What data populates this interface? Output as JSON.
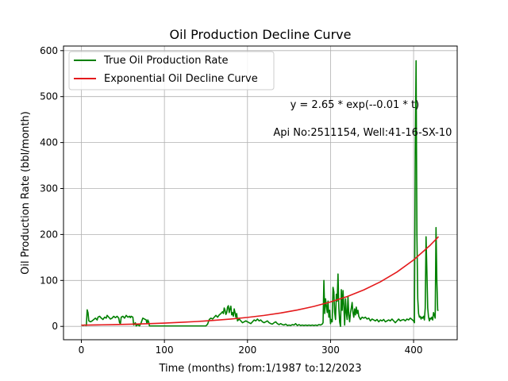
{
  "chart_data": {
    "type": "line",
    "title": "Oil Production Decline Curve",
    "xlabel": "Time (months) from:1/1987 to:12/2023",
    "ylabel": "Oil Production Rate (bbl/month)",
    "xlim": [
      -21.5,
      452.5
    ],
    "ylim": [
      -29,
      610
    ],
    "xticks": [
      0,
      100,
      200,
      300,
      400
    ],
    "yticks": [
      0,
      100,
      200,
      300,
      400,
      500,
      600
    ],
    "grid": true,
    "legend_position": "top-left",
    "annotations": [
      {
        "text": "y = 2.65 * exp(--0.01 * t)",
        "x": 310,
        "y": 475
      },
      {
        "text": "Api No:2511154, Well:41-16-SX-10",
        "x": 310,
        "y": 415
      }
    ],
    "series": [
      {
        "name": "True Oil Production Rate",
        "color": "#008000",
        "points": [
          [
            0,
            3
          ],
          [
            2,
            2
          ],
          [
            4,
            3
          ],
          [
            6,
            2
          ],
          [
            7,
            36
          ],
          [
            8,
            30
          ],
          [
            9,
            12
          ],
          [
            11,
            10
          ],
          [
            13,
            12
          ],
          [
            15,
            15
          ],
          [
            17,
            18
          ],
          [
            19,
            14
          ],
          [
            20,
            20
          ],
          [
            22,
            22
          ],
          [
            24,
            18
          ],
          [
            26,
            15
          ],
          [
            28,
            20
          ],
          [
            30,
            18
          ],
          [
            31,
            24
          ],
          [
            33,
            20
          ],
          [
            35,
            16
          ],
          [
            37,
            18
          ],
          [
            39,
            22
          ],
          [
            41,
            19
          ],
          [
            43,
            22
          ],
          [
            45,
            18
          ],
          [
            46,
            8
          ],
          [
            47,
            6
          ],
          [
            48,
            20
          ],
          [
            50,
            22
          ],
          [
            52,
            18
          ],
          [
            54,
            24
          ],
          [
            56,
            20
          ],
          [
            58,
            22
          ],
          [
            59,
            19
          ],
          [
            60,
            22
          ],
          [
            62,
            20
          ],
          [
            63,
            3
          ],
          [
            65,
            8
          ],
          [
            66,
            1
          ],
          [
            68,
            4
          ],
          [
            70,
            1
          ],
          [
            72,
            8
          ],
          [
            74,
            18
          ],
          [
            76,
            16
          ],
          [
            78,
            14
          ],
          [
            79,
            6
          ],
          [
            80,
            14
          ],
          [
            81,
            10
          ],
          [
            82,
            1
          ],
          [
            85,
            1
          ],
          [
            95,
            1
          ],
          [
            110,
            1
          ],
          [
            125,
            1
          ],
          [
            140,
            1
          ],
          [
            150,
            1
          ],
          [
            152,
            5
          ],
          [
            154,
            15
          ],
          [
            156,
            18
          ],
          [
            158,
            16
          ],
          [
            160,
            20
          ],
          [
            162,
            24
          ],
          [
            164,
            20
          ],
          [
            166,
            25
          ],
          [
            168,
            28
          ],
          [
            170,
            32
          ],
          [
            171,
            28
          ],
          [
            172,
            40
          ],
          [
            173,
            35
          ],
          [
            174,
            26
          ],
          [
            175,
            30
          ],
          [
            176,
            42
          ],
          [
            177,
            45
          ],
          [
            178,
            30
          ],
          [
            179,
            38
          ],
          [
            180,
            44
          ],
          [
            181,
            25
          ],
          [
            182,
            30
          ],
          [
            183,
            22
          ],
          [
            184,
            38
          ],
          [
            185,
            30
          ],
          [
            186,
            20
          ],
          [
            187,
            28
          ],
          [
            188,
            12
          ],
          [
            190,
            16
          ],
          [
            192,
            12
          ],
          [
            194,
            8
          ],
          [
            196,
            10
          ],
          [
            198,
            12
          ],
          [
            200,
            10
          ],
          [
            202,
            8
          ],
          [
            204,
            6
          ],
          [
            206,
            10
          ],
          [
            208,
            14
          ],
          [
            210,
            12
          ],
          [
            212,
            16
          ],
          [
            214,
            12
          ],
          [
            216,
            14
          ],
          [
            218,
            10
          ],
          [
            220,
            8
          ],
          [
            222,
            10
          ],
          [
            224,
            12
          ],
          [
            226,
            8
          ],
          [
            228,
            6
          ],
          [
            230,
            5
          ],
          [
            232,
            8
          ],
          [
            234,
            10
          ],
          [
            236,
            6
          ],
          [
            238,
            4
          ],
          [
            240,
            6
          ],
          [
            242,
            4
          ],
          [
            244,
            3
          ],
          [
            246,
            5
          ],
          [
            248,
            2
          ],
          [
            250,
            3
          ],
          [
            252,
            2
          ],
          [
            254,
            4
          ],
          [
            256,
            3
          ],
          [
            258,
            6
          ],
          [
            260,
            2
          ],
          [
            262,
            4
          ],
          [
            264,
            2
          ],
          [
            266,
            3
          ],
          [
            268,
            2
          ],
          [
            270,
            3
          ],
          [
            272,
            2
          ],
          [
            274,
            3
          ],
          [
            276,
            2
          ],
          [
            278,
            3
          ],
          [
            280,
            2
          ],
          [
            282,
            3
          ],
          [
            284,
            2
          ],
          [
            286,
            4
          ],
          [
            288,
            3
          ],
          [
            290,
            5
          ],
          [
            291,
            8
          ],
          [
            292,
            100
          ],
          [
            293,
            28
          ],
          [
            294,
            60
          ],
          [
            295,
            45
          ],
          [
            296,
            30
          ],
          [
            297,
            55
          ],
          [
            298,
            20
          ],
          [
            299,
            35
          ],
          [
            300,
            6
          ],
          [
            301,
            15
          ],
          [
            302,
            10
          ],
          [
            303,
            85
          ],
          [
            304,
            75
          ],
          [
            305,
            30
          ],
          [
            306,
            15
          ],
          [
            307,
            70
          ],
          [
            308,
            55
          ],
          [
            309,
            114
          ],
          [
            310,
            40
          ],
          [
            311,
            10
          ],
          [
            312,
            0
          ],
          [
            313,
            80
          ],
          [
            314,
            35
          ],
          [
            315,
            78
          ],
          [
            316,
            45
          ],
          [
            317,
            3
          ],
          [
            318,
            60
          ],
          [
            319,
            30
          ],
          [
            320,
            15
          ],
          [
            321,
            65
          ],
          [
            322,
            25
          ],
          [
            323,
            10
          ],
          [
            324,
            30
          ],
          [
            325,
            40
          ],
          [
            326,
            52
          ],
          [
            327,
            30
          ],
          [
            328,
            20
          ],
          [
            329,
            38
          ],
          [
            330,
            25
          ],
          [
            331,
            42
          ],
          [
            332,
            28
          ],
          [
            333,
            35
          ],
          [
            334,
            22
          ],
          [
            336,
            15
          ],
          [
            338,
            20
          ],
          [
            340,
            18
          ],
          [
            342,
            20
          ],
          [
            344,
            16
          ],
          [
            346,
            18
          ],
          [
            348,
            12
          ],
          [
            350,
            16
          ],
          [
            352,
            14
          ],
          [
            354,
            12
          ],
          [
            356,
            15
          ],
          [
            358,
            10
          ],
          [
            360,
            14
          ],
          [
            362,
            12
          ],
          [
            364,
            15
          ],
          [
            366,
            10
          ],
          [
            368,
            12
          ],
          [
            370,
            14
          ],
          [
            372,
            12
          ],
          [
            374,
            16
          ],
          [
            376,
            12
          ],
          [
            378,
            8
          ],
          [
            380,
            12
          ],
          [
            382,
            16
          ],
          [
            384,
            12
          ],
          [
            386,
            14
          ],
          [
            388,
            15
          ],
          [
            390,
            12
          ],
          [
            392,
            16
          ],
          [
            394,
            14
          ],
          [
            396,
            18
          ],
          [
            398,
            15
          ],
          [
            400,
            12
          ],
          [
            401,
            8
          ],
          [
            402,
            380
          ],
          [
            403,
            578
          ],
          [
            404,
            200
          ],
          [
            405,
            60
          ],
          [
            406,
            28
          ],
          [
            407,
            20
          ],
          [
            408,
            22
          ],
          [
            409,
            16
          ],
          [
            410,
            20
          ],
          [
            411,
            18
          ],
          [
            412,
            22
          ],
          [
            413,
            14
          ],
          [
            414,
            40
          ],
          [
            415,
            195
          ],
          [
            416,
            120
          ],
          [
            417,
            40
          ],
          [
            418,
            20
          ],
          [
            419,
            12
          ],
          [
            420,
            18
          ],
          [
            421,
            16
          ],
          [
            422,
            20
          ],
          [
            423,
            14
          ],
          [
            424,
            30
          ],
          [
            425,
            25
          ],
          [
            426,
            18
          ],
          [
            427,
            215
          ],
          [
            428,
            100
          ],
          [
            429,
            35
          ],
          [
            430,
            35
          ]
        ]
      },
      {
        "name": "Exponential Oil Decline Curve",
        "color": "#e41a1c",
        "points": [
          [
            0,
            2.65
          ],
          [
            20,
            3.24
          ],
          [
            40,
            3.95
          ],
          [
            60,
            4.83
          ],
          [
            80,
            5.9
          ],
          [
            100,
            7.2
          ],
          [
            120,
            8.8
          ],
          [
            140,
            10.74
          ],
          [
            160,
            13.12
          ],
          [
            180,
            16.03
          ],
          [
            200,
            19.57
          ],
          [
            220,
            23.91
          ],
          [
            240,
            29.2
          ],
          [
            260,
            35.66
          ],
          [
            280,
            43.55
          ],
          [
            300,
            53.2
          ],
          [
            320,
            64.97
          ],
          [
            340,
            79.35
          ],
          [
            360,
            96.91
          ],
          [
            380,
            118.36
          ],
          [
            400,
            144.56
          ],
          [
            420,
            176.56
          ],
          [
            430,
            195.12
          ]
        ]
      }
    ]
  }
}
